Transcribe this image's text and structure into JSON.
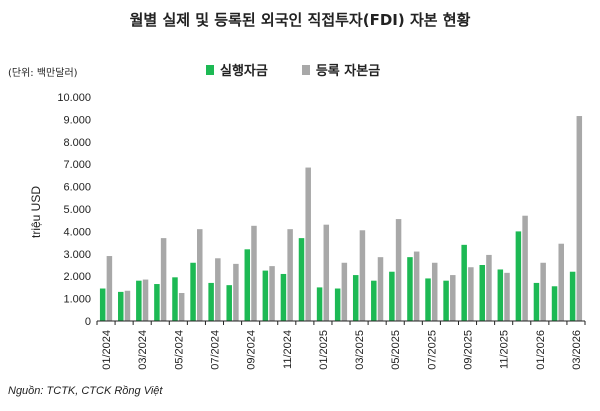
{
  "chart_data": {
    "type": "bar",
    "title": "월별 실제 및 등록된 외국인 직접투자(FDI) 자본 현황",
    "unit_note": "(단위: 백만달러)",
    "ylabel": "triệu USD",
    "ylim": [
      0,
      10000
    ],
    "yticks": [
      "0",
      "1.000",
      "2.000",
      "3.000",
      "4.000",
      "5.000",
      "6.000",
      "7.000",
      "8.000",
      "9.000",
      "10.000"
    ],
    "ytick_values": [
      0,
      1000,
      2000,
      3000,
      4000,
      5000,
      6000,
      7000,
      8000,
      9000,
      10000
    ],
    "legend_position": "top",
    "source": "Nguồn: TCTK, CTCK Rồng Việt",
    "tick_labels": [
      "01/2024",
      "03/2024",
      "05/2024",
      "07/2024",
      "09/2024",
      "11/2024",
      "01/2025",
      "03/2025",
      "05/2025",
      "07/2025",
      "09/2025",
      "11/2025",
      "01/2026",
      "03/2026"
    ],
    "categories": [
      "01/2024",
      "02/2024",
      "03/2024",
      "04/2024",
      "05/2024",
      "06/2024",
      "07/2024",
      "08/2024",
      "09/2024",
      "10/2024",
      "11/2024",
      "12/2024",
      "01/2025",
      "02/2025",
      "03/2025",
      "04/2025",
      "05/2025",
      "06/2025",
      "07/2025",
      "08/2025",
      "09/2025",
      "10/2025",
      "11/2025",
      "12/2025",
      "01/2026",
      "02/2026",
      "03/2026"
    ],
    "series": [
      {
        "name": "실행자금",
        "color": "#1db954",
        "values": [
          1450,
          1300,
          1800,
          1650,
          1950,
          2600,
          1700,
          1600,
          3200,
          2250,
          2100,
          3700,
          1500,
          1450,
          2050,
          1800,
          2200,
          2850,
          1900,
          1800,
          3400,
          2500,
          2300,
          4000,
          1700,
          1550,
          2200
        ]
      },
      {
        "name": "등록 자본금",
        "color": "#a8a8a8",
        "values": [
          2900,
          1350,
          1850,
          3700,
          1250,
          4100,
          2800,
          2550,
          4250,
          2450,
          4100,
          6850,
          4300,
          2600,
          4050,
          2850,
          4550,
          3100,
          2600,
          2050,
          2400,
          2950,
          2150,
          4700,
          2600,
          3450,
          9150
        ]
      }
    ]
  }
}
